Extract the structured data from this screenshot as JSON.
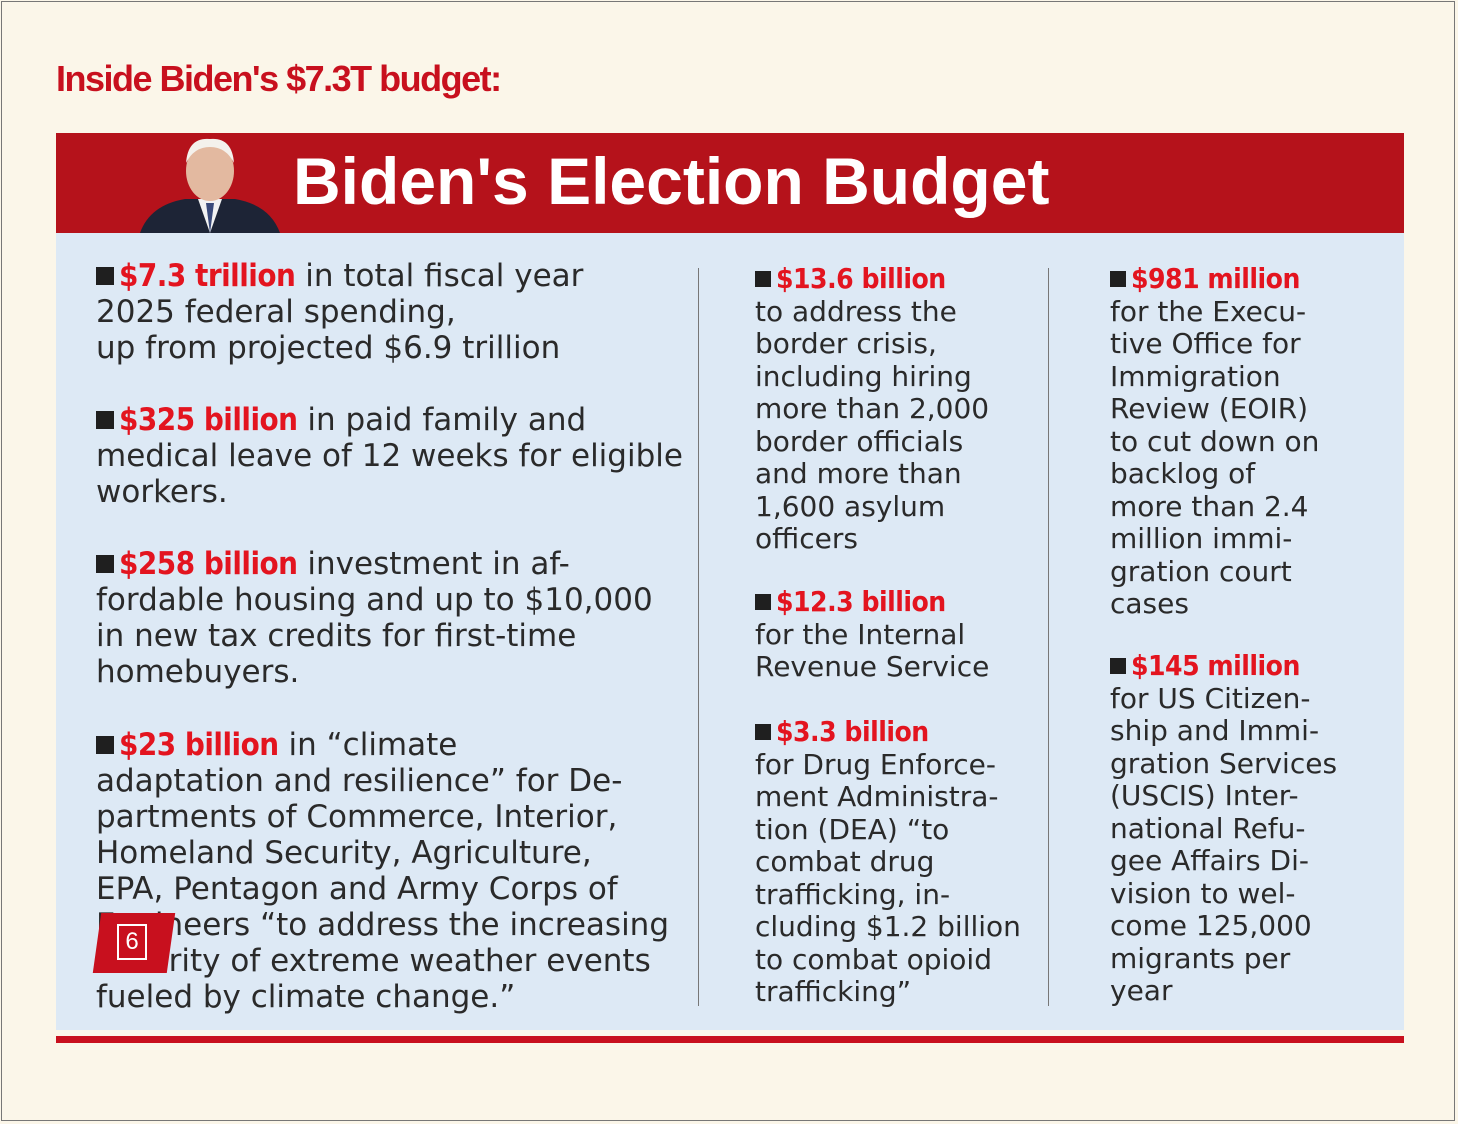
{
  "header": {
    "title": "Inside Biden's $7.3T budget:"
  },
  "banner": {
    "title": "Biden's Election Budget"
  },
  "columns": [
    {
      "items": [
        {
          "amount": "$7.3 trillion",
          "lines": [
            "in total fiscal year",
            "2025 federal spending,",
            "up from projected $6.9 trillion"
          ]
        },
        {
          "amount": "$325 billion",
          "lines": [
            "in paid family and",
            "medical leave of 12 weeks for eligible",
            "workers."
          ]
        },
        {
          "amount": "$258 billion",
          "lines": [
            "investment in af-",
            "fordable housing and up to $10,000",
            "in new tax credits for first-time",
            "homebuyers."
          ]
        },
        {
          "amount": "$23 billion",
          "lines": [
            "in “climate",
            "adaptation and resilience” for De-",
            "partments of Commerce, Interior,",
            "Homeland Security, Agriculture,",
            "EPA, Pentagon and Army Corps of",
            "Engineers “to address the increasing",
            "severity of extreme weather events",
            "fueled by climate change.”"
          ]
        }
      ]
    },
    {
      "items": [
        {
          "amount": "$13.6 billion",
          "lines": [
            "to address the",
            "border crisis,",
            "including hiring",
            "more than 2,000",
            "border officials",
            "and more than",
            "1,600 asylum",
            "officers"
          ]
        },
        {
          "amount": "$12.3 billion",
          "lines": [
            "for the Internal",
            "Revenue Service"
          ]
        },
        {
          "amount": "$3.3 billion",
          "lines": [
            "for Drug Enforce-",
            "ment Administra-",
            "tion (DEA) “to",
            "combat drug",
            "trafficking, in-",
            "cluding $1.2 billion",
            "to combat opioid",
            "trafficking”"
          ]
        }
      ]
    },
    {
      "items": [
        {
          "amount": "$981 million",
          "lines": [
            "for the Execu-",
            "tive Office for",
            "Immigration",
            "Review (EOIR)",
            "to cut down on",
            "backlog of",
            "more than 2.4",
            "million immi-",
            "gration court",
            "cases"
          ]
        },
        {
          "amount": "$145 million",
          "lines": [
            "for US Citizen-",
            "ship and Immi-",
            "gration Services",
            "(USCIS) Inter-",
            "national Refu-",
            "gee Affairs Di-",
            "vision to wel-",
            "come 125,000",
            "migrants per",
            "year"
          ]
        }
      ]
    }
  ],
  "badge": {
    "page": "6"
  }
}
